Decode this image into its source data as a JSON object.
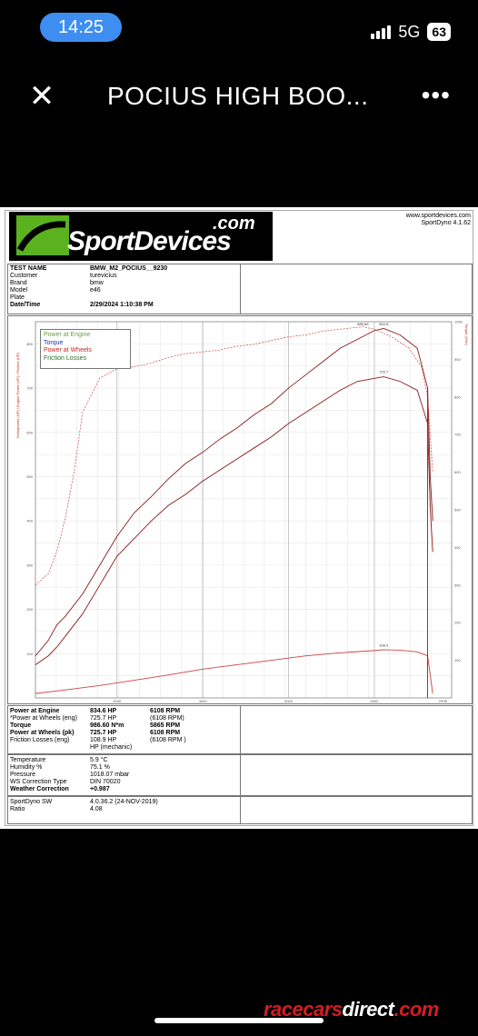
{
  "status": {
    "time": "14:25",
    "network": "5G",
    "battery": "63"
  },
  "topbar": {
    "title": "POCIUS HIGH BOO...",
    "close_icon": "close-icon",
    "more_icon": "more-dots-icon"
  },
  "doc": {
    "logo": {
      "text": "SportDevices",
      ".com": ".com"
    },
    "site": {
      "url": "www.sportdevices.com",
      "version": "SportDyno 4.1.62"
    },
    "info": [
      {
        "label": "TEST NAME",
        "value": "BMW_M2_POCIUS__9230",
        "bold": true
      },
      {
        "label": "Customer",
        "value": "turevicius"
      },
      {
        "label": "Brand",
        "value": "bmw"
      },
      {
        "label": "Model",
        "value": "e46"
      },
      {
        "label": "Plate",
        "value": ""
      },
      {
        "label": "Date/Time",
        "value": "2/29/2024 1:10:38 PM",
        "bold": true
      }
    ],
    "legend": [
      {
        "label": "Power at Engine",
        "color": "#6aa040"
      },
      {
        "label": "Torque",
        "color": "#2233aa"
      },
      {
        "label": "Power at Wheels",
        "color": "#cc2222"
      },
      {
        "label": "Friction Losses",
        "color": "#227722"
      }
    ],
    "results": [
      {
        "label": "Power at Engine",
        "v1": "834.6 HP",
        "v2": "6108 RPM",
        "bold": true
      },
      {
        "label": "*Power at Wheels (eng)",
        "v1": "725.7 HP",
        "v2": "(6108 RPM)"
      },
      {
        "label": "Torque",
        "v1": "986.60 N*m",
        "v2": "5865 RPM",
        "bold": true
      },
      {
        "label": "Power at Wheels (pk)",
        "v1": "725.7 HP",
        "v2": "6108 RPM",
        "bold": true
      },
      {
        "label": "Friction Losses (eng)",
        "v1": "108.9 HP",
        "v2": "(6108 RPM )"
      },
      {
        "label": "",
        "v1": "HP (mechanic)",
        "v2": ""
      }
    ],
    "conditions": [
      {
        "label": "Temperature",
        "value": "5.9 °C"
      },
      {
        "label": "Humidity %",
        "value": "75.1 %"
      },
      {
        "label": "Pressure",
        "value": "1018.07 mbar"
      },
      {
        "label": "WS Correction Type",
        "value": "DIN 70020"
      },
      {
        "label": "Weather Correction",
        "value": "+0.987",
        "bold": true
      }
    ],
    "software": [
      {
        "label": "SportDyno SW",
        "value": "4.0.36.2 (24-NOV-2019)"
      },
      {
        "label": "Ratio",
        "value": "4.08"
      }
    ]
  },
  "chart_data": {
    "type": "line",
    "xlabel": "",
    "x_ticks": [
      "3000",
      "4000",
      "5000",
      "6000",
      "RPM"
    ],
    "y_left_label": "Horsepower (HP) / Engine Power (HP) / Friction (HP)",
    "y_left_ticks": [
      "100",
      "200",
      "300",
      "400",
      "500",
      "600",
      "700",
      "800"
    ],
    "y_right_label": "Torque (N*m)",
    "y_right_ticks": [
      "100",
      "200",
      "300",
      "400",
      "500",
      "600",
      "700",
      "800",
      "900",
      "1000"
    ],
    "xlim": [
      2050,
      6900
    ],
    "ylim": [
      0,
      850
    ],
    "y2lim": [
      0,
      1000
    ],
    "annotations": [
      {
        "text": "986.60",
        "x": 5865,
        "y": 838
      },
      {
        "text": "834.6",
        "x": 6108,
        "y": 838
      },
      {
        "text": "725.7",
        "x": 6108,
        "y": 730
      },
      {
        "text": "108.9",
        "x": 6108,
        "y": 112
      }
    ],
    "series": [
      {
        "name": "Power at Engine",
        "color": "#8b1a1a",
        "style": "solid",
        "x": [
          2050,
          2200,
          2300,
          2400,
          2600,
          2800,
          3000,
          3200,
          3400,
          3600,
          3800,
          4000,
          4200,
          4400,
          4600,
          4800,
          5000,
          5200,
          5400,
          5600,
          5800,
          6000,
          6108,
          6300,
          6500,
          6620,
          6650,
          6680
        ],
        "y": [
          95,
          130,
          165,
          185,
          235,
          300,
          365,
          418,
          455,
          495,
          530,
          555,
          585,
          610,
          640,
          665,
          700,
          730,
          760,
          790,
          810,
          830,
          834.6,
          820,
          790,
          700,
          500,
          400
        ]
      },
      {
        "name": "Power at Wheels",
        "color": "#8b1a1a",
        "style": "solid",
        "x": [
          2050,
          2200,
          2300,
          2400,
          2600,
          2800,
          3000,
          3200,
          3400,
          3600,
          3800,
          4000,
          4200,
          4400,
          4600,
          4800,
          5000,
          5200,
          5400,
          5600,
          5800,
          6000,
          6108,
          6300,
          6500,
          6620,
          6650,
          6680
        ],
        "y": [
          75,
          95,
          115,
          140,
          190,
          255,
          320,
          360,
          400,
          435,
          460,
          490,
          515,
          540,
          565,
          590,
          620,
          645,
          670,
          695,
          715,
          722,
          725.7,
          715,
          695,
          620,
          430,
          330
        ]
      },
      {
        "name": "Torque",
        "color": "#cc4444",
        "style": "dashed",
        "x": [
          2050,
          2200,
          2300,
          2400,
          2500,
          2600,
          2800,
          3000,
          3200,
          3400,
          3600,
          3800,
          4000,
          4200,
          4400,
          4600,
          4800,
          5000,
          5200,
          5400,
          5600,
          5865,
          6000,
          6200,
          6400,
          6550,
          6620,
          6680
        ],
        "y2": [
          300,
          330,
          390,
          480,
          600,
          760,
          850,
          875,
          880,
          890,
          905,
          915,
          920,
          925,
          935,
          940,
          950,
          960,
          965,
          975,
          980,
          986.6,
          980,
          960,
          930,
          880,
          800,
          600
        ]
      },
      {
        "name": "Friction Losses",
        "color": "#cc4444",
        "style": "solid",
        "x": [
          2050,
          2400,
          2800,
          3200,
          3600,
          4000,
          4400,
          4800,
          5200,
          5600,
          6000,
          6108,
          6300,
          6500,
          6620,
          6680
        ],
        "y": [
          10,
          18,
          28,
          40,
          52,
          65,
          75,
          85,
          95,
          102,
          107,
          108.9,
          108,
          104,
          95,
          10
        ]
      }
    ]
  }
}
